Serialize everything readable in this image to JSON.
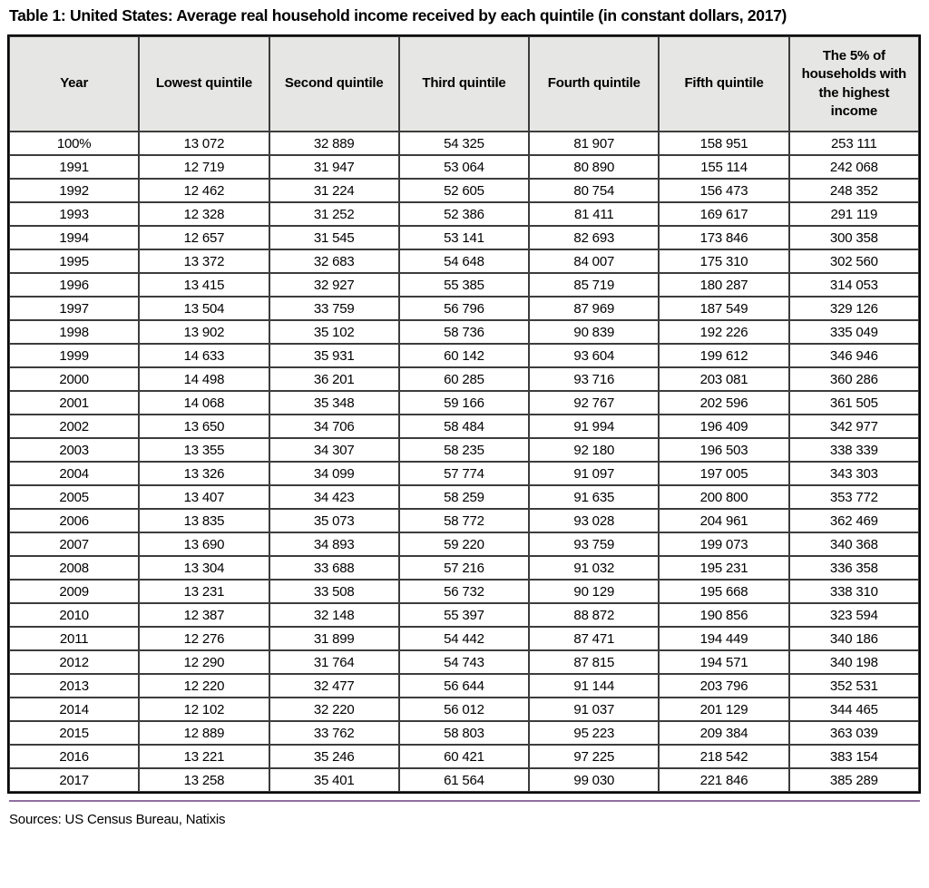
{
  "title": "Table 1: United States: Average real household income received by each quintile (in constant dollars, 2017)",
  "sources": "Sources: US Census Bureau, Natixis",
  "colors": {
    "header_background": "#e6e6e4",
    "grid_border": "#3c3c3c",
    "outer_border": "#000000",
    "divider_purple": "#8f6fa0",
    "text": "#000000"
  },
  "table": {
    "headers": [
      "Year",
      "Lowest quintile",
      "Second quintile",
      "Third quintile",
      "Fourth quintile",
      "Fifth quintile",
      "The 5% of households with the highest income"
    ],
    "rows": [
      [
        "100%",
        "13 072",
        "32 889",
        "54 325",
        "81 907",
        "158 951",
        "253 111"
      ],
      [
        "1991",
        "12 719",
        "31 947",
        "53 064",
        "80 890",
        "155 114",
        "242 068"
      ],
      [
        "1992",
        "12 462",
        "31 224",
        "52 605",
        "80 754",
        "156 473",
        "248 352"
      ],
      [
        "1993",
        "12 328",
        "31 252",
        "52 386",
        "81 411",
        "169 617",
        "291 119"
      ],
      [
        "1994",
        "12 657",
        "31 545",
        "53 141",
        "82 693",
        "173 846",
        "300 358"
      ],
      [
        "1995",
        "13 372",
        "32 683",
        "54 648",
        "84 007",
        "175 310",
        "302 560"
      ],
      [
        "1996",
        "13 415",
        "32 927",
        "55 385",
        "85 719",
        "180 287",
        "314 053"
      ],
      [
        "1997",
        "13 504",
        "33 759",
        "56 796",
        "87 969",
        "187 549",
        "329 126"
      ],
      [
        "1998",
        "13 902",
        "35 102",
        "58 736",
        "90 839",
        "192 226",
        "335 049"
      ],
      [
        "1999",
        "14 633",
        "35 931",
        "60 142",
        "93 604",
        "199 612",
        "346 946"
      ],
      [
        "2000",
        "14 498",
        "36 201",
        "60 285",
        "93 716",
        "203 081",
        "360 286"
      ],
      [
        "2001",
        "14 068",
        "35 348",
        "59 166",
        "92 767",
        "202 596",
        "361 505"
      ],
      [
        "2002",
        "13 650",
        "34 706",
        "58 484",
        "91 994",
        "196 409",
        "342 977"
      ],
      [
        "2003",
        "13 355",
        "34 307",
        "58 235",
        "92 180",
        "196 503",
        "338 339"
      ],
      [
        "2004",
        "13 326",
        "34 099",
        "57 774",
        "91 097",
        "197 005",
        "343 303"
      ],
      [
        "2005",
        "13 407",
        "34 423",
        "58 259",
        "91 635",
        "200 800",
        "353 772"
      ],
      [
        "2006",
        "13 835",
        "35 073",
        "58 772",
        "93 028",
        "204 961",
        "362 469"
      ],
      [
        "2007",
        "13 690",
        "34 893",
        "59 220",
        "93 759",
        "199 073",
        "340 368"
      ],
      [
        "2008",
        "13 304",
        "33 688",
        "57 216",
        "91 032",
        "195 231",
        "336 358"
      ],
      [
        "2009",
        "13 231",
        "33 508",
        "56 732",
        "90 129",
        "195 668",
        "338 310"
      ],
      [
        "2010",
        "12 387",
        "32 148",
        "55 397",
        "88 872",
        "190 856",
        "323 594"
      ],
      [
        "2011",
        "12 276",
        "31 899",
        "54 442",
        "87 471",
        "194 449",
        "340 186"
      ],
      [
        "2012",
        "12 290",
        "31 764",
        "54 743",
        "87 815",
        "194 571",
        "340 198"
      ],
      [
        "2013",
        "12 220",
        "32 477",
        "56 644",
        "91 144",
        "203 796",
        "352 531"
      ],
      [
        "2014",
        "12 102",
        "32 220",
        "56 012",
        "91 037",
        "201 129",
        "344 465"
      ],
      [
        "2015",
        "12 889",
        "33 762",
        "58 803",
        "95 223",
        "209 384",
        "363 039"
      ],
      [
        "2016",
        "13 221",
        "35 246",
        "60 421",
        "97 225",
        "218 542",
        "383 154"
      ],
      [
        "2017",
        "13 258",
        "35 401",
        "61 564",
        "99 030",
        "221 846",
        "385 289"
      ]
    ]
  },
  "chart_data": {
    "type": "table",
    "title": "Table 1: United States: Average real household income received by each quintile (in constant dollars, 2017)",
    "columns": [
      "Year",
      "Lowest quintile",
      "Second quintile",
      "Third quintile",
      "Fourth quintile",
      "Fifth quintile",
      "The 5% of households with the highest income"
    ],
    "rows": [
      [
        "100%",
        13072,
        32889,
        54325,
        81907,
        158951,
        253111
      ],
      [
        "1991",
        12719,
        31947,
        53064,
        80890,
        155114,
        242068
      ],
      [
        "1992",
        12462,
        31224,
        52605,
        80754,
        156473,
        248352
      ],
      [
        "1993",
        12328,
        31252,
        52386,
        81411,
        169617,
        291119
      ],
      [
        "1994",
        12657,
        31545,
        53141,
        82693,
        173846,
        300358
      ],
      [
        "1995",
        13372,
        32683,
        54648,
        84007,
        175310,
        302560
      ],
      [
        "1996",
        13415,
        32927,
        55385,
        85719,
        180287,
        314053
      ],
      [
        "1997",
        13504,
        33759,
        56796,
        87969,
        187549,
        329126
      ],
      [
        "1998",
        13902,
        35102,
        58736,
        90839,
        192226,
        335049
      ],
      [
        "1999",
        14633,
        35931,
        60142,
        93604,
        199612,
        346946
      ],
      [
        "2000",
        14498,
        36201,
        60285,
        93716,
        203081,
        360286
      ],
      [
        "2001",
        14068,
        35348,
        59166,
        92767,
        202596,
        361505
      ],
      [
        "2002",
        13650,
        34706,
        58484,
        91994,
        196409,
        342977
      ],
      [
        "2003",
        13355,
        34307,
        58235,
        92180,
        196503,
        338339
      ],
      [
        "2004",
        13326,
        34099,
        57774,
        91097,
        197005,
        343303
      ],
      [
        "2005",
        13407,
        34423,
        58259,
        91635,
        200800,
        353772
      ],
      [
        "2006",
        13835,
        35073,
        58772,
        93028,
        204961,
        362469
      ],
      [
        "2007",
        13690,
        34893,
        59220,
        93759,
        199073,
        340368
      ],
      [
        "2008",
        13304,
        33688,
        57216,
        91032,
        195231,
        336358
      ],
      [
        "2009",
        13231,
        33508,
        56732,
        90129,
        195668,
        338310
      ],
      [
        "2010",
        12387,
        32148,
        55397,
        88872,
        190856,
        323594
      ],
      [
        "2011",
        12276,
        31899,
        54442,
        87471,
        194449,
        340186
      ],
      [
        "2012",
        12290,
        31764,
        54743,
        87815,
        194571,
        340198
      ],
      [
        "2013",
        12220,
        32477,
        56644,
        91144,
        203796,
        352531
      ],
      [
        "2014",
        12102,
        32220,
        56012,
        91037,
        201129,
        344465
      ],
      [
        "2015",
        12889,
        33762,
        58803,
        95223,
        209384,
        363039
      ],
      [
        "2016",
        13221,
        35246,
        60421,
        97225,
        218542,
        383154
      ],
      [
        "2017",
        13258,
        35401,
        61564,
        99030,
        221846,
        385289
      ]
    ],
    "notes": "Sources: US Census Bureau, Natixis",
    "units": "constant 2017 dollars"
  }
}
